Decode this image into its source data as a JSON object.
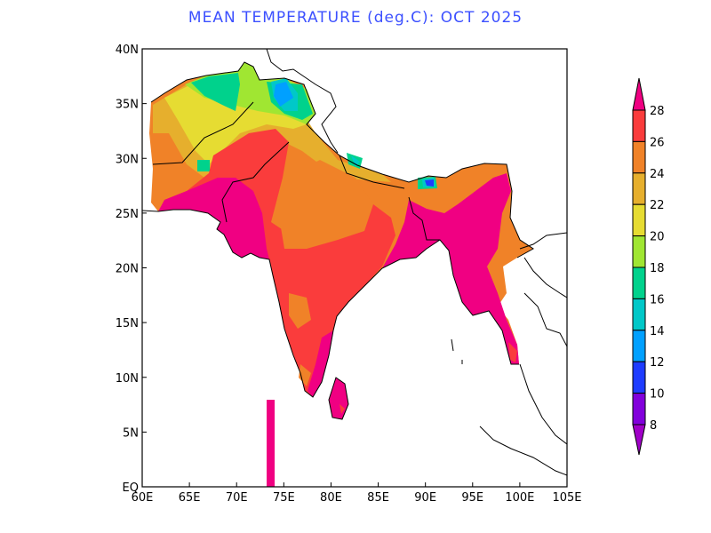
{
  "title": "MEAN TEMPERATURE (deg.C): OCT 2025",
  "map": {
    "lon_labels": [
      "60E",
      "65E",
      "70E",
      "75E",
      "80E",
      "85E",
      "90E",
      "95E",
      "100E",
      "105E"
    ],
    "lat_labels": [
      "EQ",
      "5N",
      "10N",
      "15N",
      "20N",
      "25N",
      "30N",
      "35N",
      "40N"
    ],
    "lon_range": [
      60,
      105
    ],
    "lat_range": [
      0,
      40
    ]
  },
  "colorbar": {
    "levels": [
      "28",
      "26",
      "24",
      "22",
      "20",
      "18",
      "16",
      "14",
      "12",
      "10",
      "8"
    ],
    "colors": {
      "above_28": "#f00082",
      "26_28": "#fa3c3c",
      "24_26": "#f08228",
      "22_24": "#e6af2d",
      "20_22": "#e6dc32",
      "18_20": "#a0e632",
      "16_18": "#00d28c",
      "14_16": "#00c8c8",
      "12_14": "#00a0ff",
      "10_12": "#1e3cff",
      "8_10": "#8200dc",
      "below_8": "#a000c8"
    }
  }
}
